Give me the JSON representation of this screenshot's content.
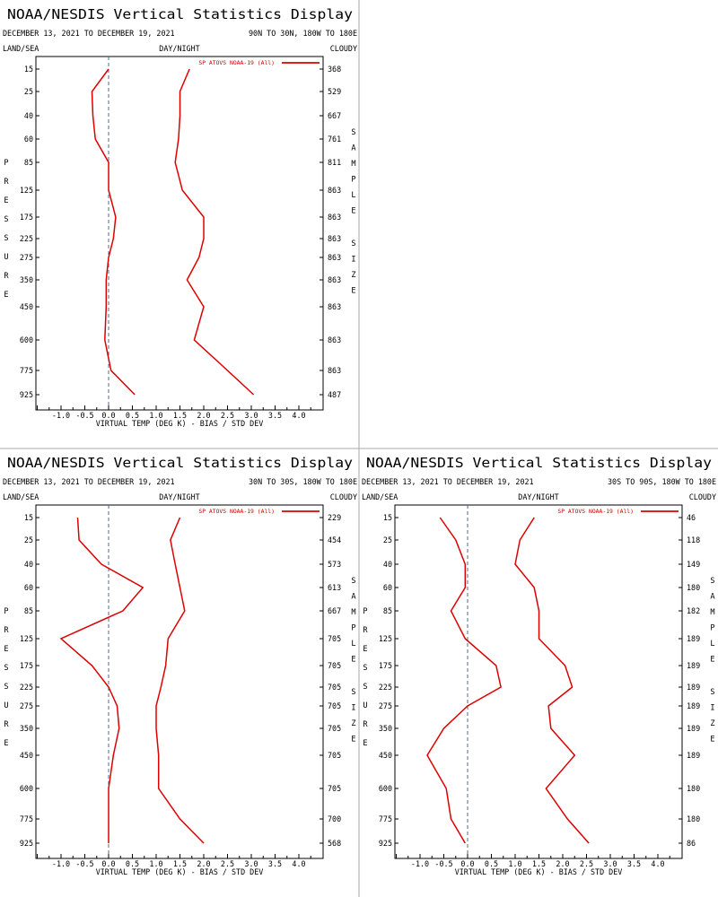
{
  "chart_data": [
    {
      "type": "line",
      "title": "NOAA/NESDIS Vertical Statistics Display",
      "date_range": "DECEMBER 13, 2021 TO DECEMBER 19, 2021",
      "region": "90N TO 30N, 180W TO 180E",
      "top_left_label": "LAND/SEA",
      "top_center_label": "DAY/NIGHT",
      "top_right_label": "CLOUDY",
      "left_axis_label": "PRESSURE",
      "right_axis_label": [
        "SAMPLE",
        "SIZE"
      ],
      "xlabel": "VIRTUAL TEMP (DEG K) - BIAS / STD DEV",
      "xlim": [
        -1.5,
        4.5
      ],
      "x_ticks": [
        "-1.0",
        "-0.5",
        "0.0",
        "0.5",
        "1.0",
        "1.5",
        "2.0",
        "2.5",
        "3.0",
        "3.5",
        "4.0"
      ],
      "pressure_levels": [
        "15",
        "25",
        "40",
        "60",
        "85",
        "125",
        "175",
        "225",
        "275",
        "350",
        "450",
        "600",
        "775",
        "925"
      ],
      "sample_size": [
        "368",
        "529",
        "667",
        "761",
        "811",
        "863",
        "863",
        "863",
        "863",
        "863",
        "863",
        "863",
        "863",
        "487"
      ],
      "legend": "SP ATOVS NOAA-19 (All)",
      "color": "#dd0000",
      "series": [
        {
          "role": "bias",
          "values": [
            0.0,
            -0.35,
            -0.33,
            -0.28,
            0.0,
            0.0,
            0.15,
            0.1,
            0.0,
            -0.05,
            -0.05,
            -0.08,
            0.05,
            0.55
          ]
        },
        {
          "role": "std_dev",
          "values": [
            1.7,
            1.5,
            1.5,
            1.47,
            1.4,
            1.55,
            2.0,
            2.0,
            1.9,
            1.65,
            2.0,
            1.8,
            2.5,
            3.05
          ]
        }
      ]
    },
    {
      "type": "line",
      "title": "NOAA/NESDIS Vertical Statistics Display",
      "date_range": "DECEMBER 13, 2021 TO DECEMBER 19, 2021",
      "region": "30N TO 30S, 180W TO 180E",
      "top_left_label": "LAND/SEA",
      "top_center_label": "DAY/NIGHT",
      "top_right_label": "CLOUDY",
      "left_axis_label": "PRESSURE",
      "right_axis_label": [
        "SAMPLE",
        "SIZE"
      ],
      "xlabel": "VIRTUAL TEMP (DEG K) - BIAS / STD DEV",
      "xlim": [
        -1.5,
        4.5
      ],
      "x_ticks": [
        "-1.0",
        "-0.5",
        "0.0",
        "0.5",
        "1.0",
        "1.5",
        "2.0",
        "2.5",
        "3.0",
        "3.5",
        "4.0"
      ],
      "pressure_levels": [
        "15",
        "25",
        "40",
        "60",
        "85",
        "125",
        "175",
        "225",
        "275",
        "350",
        "450",
        "600",
        "775",
        "925"
      ],
      "sample_size": [
        "229",
        "454",
        "573",
        "613",
        "667",
        "705",
        "705",
        "705",
        "705",
        "705",
        "705",
        "705",
        "700",
        "568"
      ],
      "legend": "SP ATOVS NOAA-19 (All)",
      "color": "#dd0000",
      "series": [
        {
          "role": "bias",
          "values": [
            -0.65,
            -0.62,
            -0.15,
            0.72,
            0.3,
            -1.0,
            -0.35,
            0.0,
            0.18,
            0.22,
            0.1,
            0.0,
            0.0,
            0.0
          ]
        },
        {
          "role": "std_dev",
          "values": [
            1.5,
            1.3,
            1.4,
            1.5,
            1.6,
            1.25,
            1.2,
            1.1,
            1.0,
            1.0,
            1.05,
            1.05,
            1.5,
            2.0
          ]
        }
      ]
    },
    {
      "type": "line",
      "title": "NOAA/NESDIS Vertical Statistics Display",
      "date_range": "DECEMBER 13, 2021 TO DECEMBER 19, 2021",
      "region": "30S TO 90S, 180W TO 180E",
      "top_left_label": "LAND/SEA",
      "top_center_label": "DAY/NIGHT",
      "top_right_label": "CLOUDY",
      "left_axis_label": "PRESSURE",
      "right_axis_label": [
        "SAMPLE",
        "SIZE"
      ],
      "xlabel": "VIRTUAL TEMP (DEG K) - BIAS / STD DEV",
      "xlim": [
        -1.5,
        4.5
      ],
      "x_ticks": [
        "-1.0",
        "-0.5",
        "0.0",
        "0.5",
        "1.0",
        "1.5",
        "2.0",
        "2.5",
        "3.0",
        "3.5",
        "4.0"
      ],
      "pressure_levels": [
        "15",
        "25",
        "40",
        "60",
        "85",
        "125",
        "175",
        "225",
        "275",
        "350",
        "450",
        "600",
        "775",
        "925"
      ],
      "sample_size": [
        "46",
        "118",
        "149",
        "180",
        "182",
        "189",
        "189",
        "189",
        "189",
        "189",
        "189",
        "180",
        "180",
        "86"
      ],
      "legend": "SP ATOVS NOAA-19 (All)",
      "color": "#dd0000",
      "series": [
        {
          "role": "bias",
          "values": [
            -0.58,
            -0.25,
            -0.05,
            -0.05,
            -0.35,
            -0.05,
            0.6,
            0.7,
            0.0,
            -0.5,
            -0.85,
            -0.45,
            -0.35,
            -0.05
          ]
        },
        {
          "role": "std_dev",
          "values": [
            1.4,
            1.1,
            1.0,
            1.4,
            1.5,
            1.5,
            2.05,
            2.2,
            1.7,
            1.75,
            2.25,
            1.65,
            2.1,
            2.55
          ]
        }
      ]
    }
  ]
}
